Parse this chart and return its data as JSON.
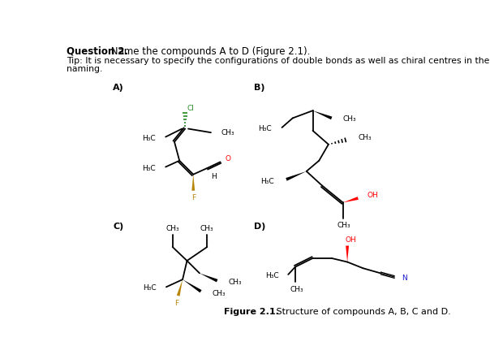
{
  "bg_color": "#ffffff",
  "title_bold": "Question 2.",
  "title_rest": " Name the compounds A to D (Figure 2.1).",
  "tip1": "Tip: It is necessary to specify the configurations of double bonds as well as chiral centres in the",
  "tip2": "naming.",
  "cap_bold": "Figure 2.1.",
  "cap_rest": " Structure of compounds A, B, C and D."
}
